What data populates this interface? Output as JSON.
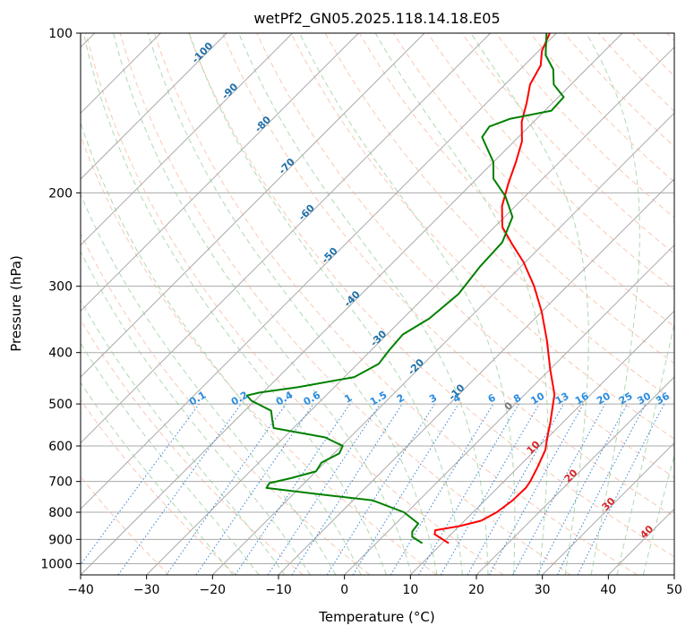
{
  "chart_data": {
    "type": "line",
    "subtype": "skew-t log-p diagram",
    "title": "wetPf2_GN05.2025.118.14.18.E05",
    "xlabel": "Temperature (°C)",
    "ylabel": "Pressure (hPa)",
    "xlim": [
      -40,
      50
    ],
    "ylim": [
      1050,
      100
    ],
    "y_scale": "log",
    "x_ticks": [
      "−40",
      "−30",
      "−20",
      "−10",
      "0",
      "10",
      "20",
      "30",
      "40",
      "50"
    ],
    "y_ticks": [
      "100",
      "200",
      "300",
      "400",
      "500",
      "600",
      "700",
      "800",
      "900",
      "1000"
    ],
    "grid": true,
    "series": [
      {
        "color": "#ff0000",
        "points": [
          [
            11.0,
            915
          ],
          [
            7.5,
            880
          ],
          [
            7.0,
            865
          ],
          [
            10.0,
            850
          ],
          [
            12.5,
            830
          ],
          [
            13.6,
            800
          ],
          [
            14.2,
            760
          ],
          [
            14.3,
            720
          ],
          [
            14.0,
            700
          ],
          [
            13.0,
            660
          ],
          [
            11.5,
            610
          ],
          [
            10.0,
            580
          ],
          [
            8.0,
            540
          ],
          [
            6.0,
            505
          ],
          [
            4.5,
            480
          ],
          [
            0.0,
            430
          ],
          [
            -4.8,
            380
          ],
          [
            -10.0,
            335
          ],
          [
            -15.0,
            300
          ],
          [
            -20.3,
            270
          ],
          [
            -24.7,
            250
          ],
          [
            -28.8,
            232
          ],
          [
            -32.0,
            212
          ],
          [
            -34.5,
            192
          ],
          [
            -36.6,
            175
          ],
          [
            -38.8,
            160
          ],
          [
            -41.8,
            147
          ],
          [
            -44.0,
            135
          ],
          [
            -46.2,
            125
          ],
          [
            -47.5,
            115
          ],
          [
            -49.5,
            108
          ],
          [
            -51.0,
            100
          ]
        ]
      },
      {
        "color": "#008000",
        "points": [
          [
            7.0,
            915
          ],
          [
            4.5,
            890
          ],
          [
            3.7,
            870
          ],
          [
            3.4,
            840
          ],
          [
            -0.5,
            800
          ],
          [
            -7.0,
            760
          ],
          [
            -16.0,
            740
          ],
          [
            -25.0,
            720
          ],
          [
            -25.3,
            705
          ],
          [
            -22.8,
            690
          ],
          [
            -20.0,
            670
          ],
          [
            -20.5,
            645
          ],
          [
            -19.2,
            620
          ],
          [
            -19.8,
            600
          ],
          [
            -23.8,
            578
          ],
          [
            -33.0,
            555
          ],
          [
            -34.5,
            535
          ],
          [
            -36.0,
            515
          ],
          [
            -40.5,
            493
          ],
          [
            -42.0,
            482
          ],
          [
            -40.5,
            476
          ],
          [
            -35.5,
            465
          ],
          [
            -28.5,
            445
          ],
          [
            -26.8,
            420
          ],
          [
            -27.3,
            395
          ],
          [
            -27.6,
            370
          ],
          [
            -26.0,
            345
          ],
          [
            -25.3,
            310
          ],
          [
            -26.2,
            275
          ],
          [
            -26.5,
            248
          ],
          [
            -28.8,
            222
          ],
          [
            -33.0,
            203
          ],
          [
            -37.5,
            188
          ],
          [
            -40.0,
            175
          ],
          [
            -43.0,
            165
          ],
          [
            -45.5,
            157
          ],
          [
            -46.0,
            150
          ],
          [
            -44.0,
            145
          ],
          [
            -39.0,
            140
          ],
          [
            -39.2,
            132
          ],
          [
            -42.6,
            125
          ],
          [
            -45.0,
            117
          ],
          [
            -48.3,
            110
          ],
          [
            -51.5,
            100
          ]
        ]
      }
    ],
    "isotherm_labels": [
      "-100",
      "-90",
      "-80",
      "-70",
      "-60",
      "-50",
      "-40",
      "-30",
      "-20",
      "-10",
      "0",
      "10",
      "20",
      "30",
      "40"
    ],
    "mixing_ratio_labels": [
      "0.1",
      "0.2",
      "0.4",
      "0.6",
      "1",
      "1.5",
      "2",
      "3",
      "4",
      "6",
      "8",
      "10",
      "13",
      "16",
      "20",
      "25",
      "30",
      "36"
    ],
    "colors": {
      "isotherm": "#aaaaaa",
      "dry_adiabat": "#f4a582",
      "moist_adiabat": "#8fc98f",
      "mixing_ratio": "#1f77d4",
      "isotherm_label_cold": "#1f6fa8",
      "isotherm_label_warm": "#d62728",
      "isotherm_label_zero": "#777777",
      "mixing_label": "#2b8cde",
      "temperature": "#ff0000",
      "dewpoint": "#008000"
    }
  }
}
